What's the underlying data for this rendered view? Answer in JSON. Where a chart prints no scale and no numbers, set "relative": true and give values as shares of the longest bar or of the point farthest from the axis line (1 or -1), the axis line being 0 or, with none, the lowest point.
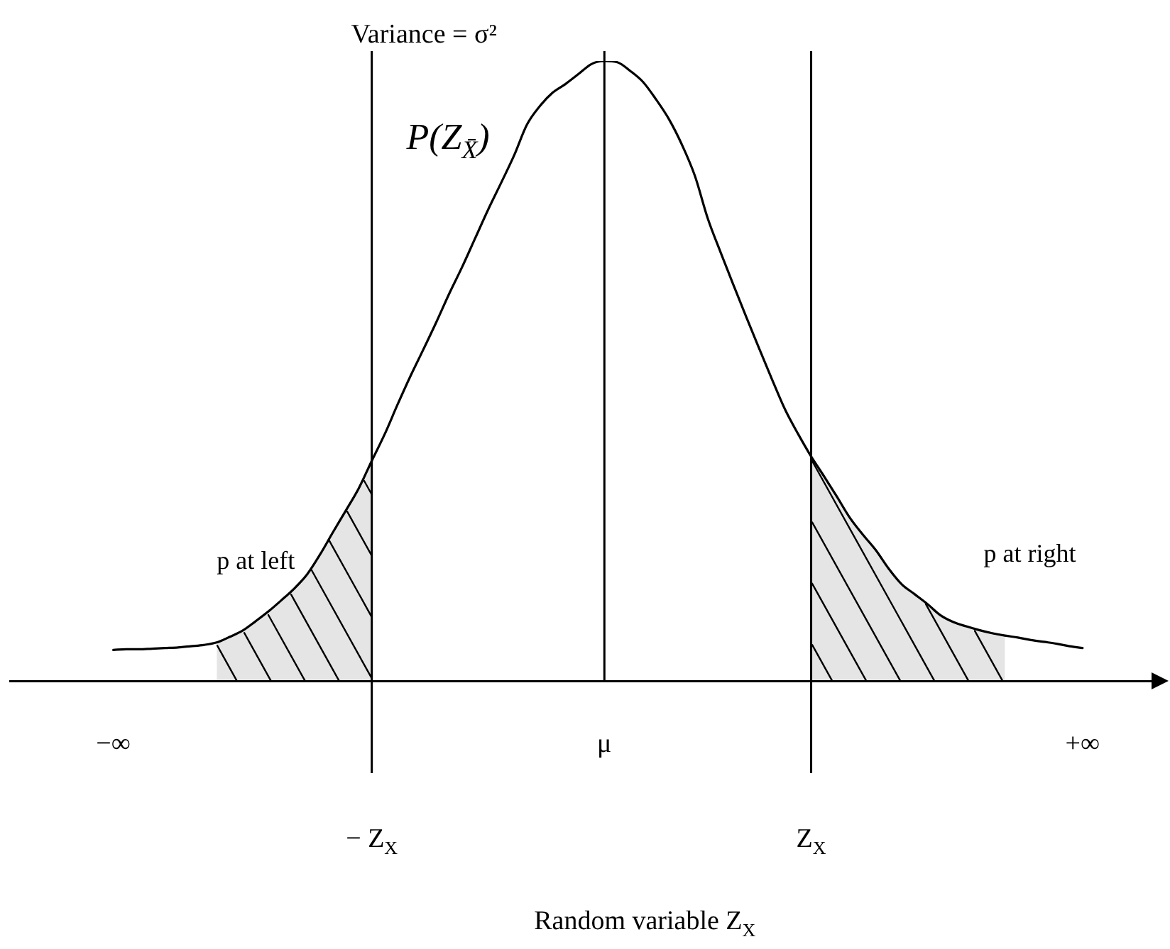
{
  "chart_data": {
    "type": "line",
    "relative": true,
    "title": "Variance = σ²",
    "xlabel": "Random variable Z$_{X}$",
    "marker": "none",
    "categories": [
      null,
      null,
      null,
      null,
      null,
      null,
      null,
      null,
      "−∞",
      null,
      null,
      null,
      null,
      null,
      null,
      null,
      null,
      null,
      null,
      null,
      null,
      null,
      null,
      null,
      null,
      null,
      null,
      null,
      "− Z$_{X}$",
      null,
      null,
      null,
      null,
      null,
      null,
      null,
      null,
      null,
      null,
      null,
      null,
      null,
      null,
      null,
      null,
      null,
      "μ",
      null,
      null,
      null,
      null,
      null,
      null,
      null,
      null,
      null,
      null,
      null,
      null,
      null,
      null,
      null,
      "Z$_{X}$",
      null,
      null,
      null,
      null,
      null,
      null,
      null,
      null,
      null,
      null,
      null,
      null,
      null,
      null,
      null,
      null,
      null,
      null,
      null,
      null,
      "+∞",
      null,
      null,
      null,
      null,
      null,
      null
    ],
    "series": [
      {
        "name": "P(Z$_{X̄}$)",
        "color": "#000000",
        "values": [
          null,
          null,
          null,
          null,
          null,
          null,
          null,
          null,
          0.05,
          0.051,
          0.051,
          0.052,
          0.053,
          0.054,
          0.056,
          0.058,
          0.062,
          0.071,
          0.081,
          0.096,
          0.112,
          0.13,
          0.149,
          0.172,
          0.204,
          0.24,
          0.275,
          0.311,
          0.355,
          0.398,
          0.446,
          0.492,
          0.535,
          0.579,
          0.625,
          0.668,
          0.714,
          0.76,
          0.803,
          0.847,
          0.897,
          0.927,
          0.949,
          0.963,
          0.979,
          0.995,
          1,
          0.998,
          0.984,
          0.966,
          0.938,
          0.906,
          0.865,
          0.815,
          0.746,
          0.691,
          0.638,
          0.586,
          0.535,
          0.485,
          0.437,
          0.398,
          0.362,
          0.33,
          0.297,
          0.263,
          0.236,
          0.211,
          0.181,
          0.156,
          0.14,
          0.124,
          0.106,
          0.095,
          0.088,
          0.082,
          0.077,
          0.073,
          0.07,
          0.066,
          0.063,
          0.06,
          0.056,
          0.053,
          null,
          null,
          null,
          null,
          null,
          null
        ]
      },
      {
        "type": "area",
        "color": "#000000",
        "values": [
          null,
          null,
          null,
          null,
          null,
          null,
          null,
          null,
          null,
          null,
          null,
          null,
          null,
          null,
          null,
          null,
          0.062,
          0.071,
          0.081,
          0.096,
          0.112,
          0.13,
          0.149,
          0.172,
          0.204,
          0.24,
          0.275,
          0.311,
          0.355,
          null,
          null,
          null,
          null,
          null,
          null,
          null,
          null,
          null,
          null,
          null,
          null,
          null,
          null,
          null,
          null,
          null,
          null,
          null,
          null,
          null,
          null,
          null,
          null,
          null,
          null,
          null,
          null,
          null,
          null,
          null,
          null,
          null,
          null,
          null,
          null,
          null,
          null,
          null,
          null,
          null,
          null,
          null,
          null,
          null,
          null,
          null,
          null,
          null,
          null,
          null,
          null,
          null,
          null,
          null,
          null,
          null,
          null,
          null,
          null,
          null
        ]
      },
      {
        "type": "area",
        "color": "#000000",
        "values": [
          null,
          null,
          null,
          null,
          null,
          null,
          null,
          null,
          null,
          null,
          null,
          null,
          null,
          null,
          null,
          null,
          null,
          null,
          null,
          null,
          null,
          null,
          null,
          null,
          null,
          null,
          null,
          null,
          null,
          null,
          null,
          null,
          null,
          null,
          null,
          null,
          null,
          null,
          null,
          null,
          null,
          null,
          null,
          null,
          null,
          null,
          null,
          null,
          null,
          null,
          null,
          null,
          null,
          null,
          null,
          null,
          null,
          null,
          null,
          null,
          null,
          null,
          0.362,
          0.33,
          0.297,
          0.263,
          0.236,
          0.211,
          0.181,
          0.156,
          0.14,
          0.124,
          0.106,
          0.095,
          0.088,
          0.082,
          0.077,
          0.073,
          null,
          null,
          null,
          null,
          null,
          null,
          null,
          null,
          null,
          null,
          null,
          null
        ]
      }
    ],
    "ref_lines": [
      {
        "axis": "x",
        "value": "− Z$_{X}$"
      },
      {
        "axis": "x",
        "value": "μ"
      },
      {
        "axis": "x",
        "value": "Z$_{X}$"
      }
    ],
    "annotations": [
      "p at left",
      "p at right"
    ]
  }
}
